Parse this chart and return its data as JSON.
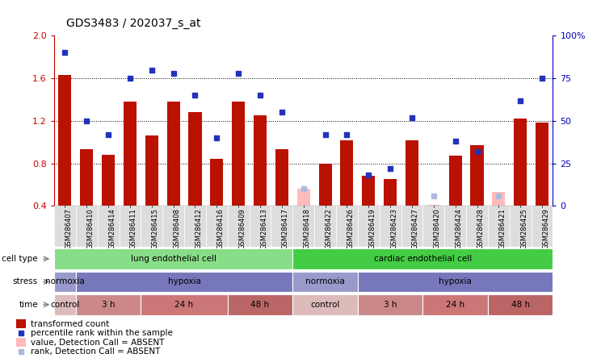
{
  "title": "GDS3483 / 202037_s_at",
  "samples": [
    "GSM286407",
    "GSM286410",
    "GSM286414",
    "GSM286411",
    "GSM286415",
    "GSM286408",
    "GSM286412",
    "GSM286416",
    "GSM286409",
    "GSM286413",
    "GSM286417",
    "GSM286418",
    "GSM286422",
    "GSM286426",
    "GSM286419",
    "GSM286423",
    "GSM286427",
    "GSM286420",
    "GSM286424",
    "GSM286428",
    "GSM286421",
    "GSM286425",
    "GSM286429"
  ],
  "bar_values": [
    1.63,
    0.93,
    0.88,
    1.38,
    1.06,
    1.38,
    1.28,
    0.84,
    1.38,
    1.25,
    0.93,
    0.56,
    0.8,
    1.02,
    0.68,
    0.65,
    1.02,
    0.41,
    0.87,
    0.97,
    0.53,
    1.22,
    1.18
  ],
  "bar_absent": [
    false,
    false,
    false,
    false,
    false,
    false,
    false,
    false,
    false,
    false,
    false,
    true,
    false,
    false,
    false,
    false,
    false,
    true,
    false,
    false,
    true,
    false,
    false
  ],
  "dot_values": [
    90,
    50,
    42,
    75,
    80,
    78,
    65,
    40,
    78,
    65,
    55,
    10,
    42,
    42,
    18,
    22,
    52,
    6,
    38,
    32,
    6,
    62,
    75
  ],
  "dot_absent": [
    false,
    false,
    false,
    false,
    false,
    false,
    false,
    false,
    false,
    false,
    false,
    true,
    false,
    false,
    false,
    false,
    false,
    true,
    false,
    false,
    true,
    false,
    false
  ],
  "ylim_left": [
    0.4,
    2.0
  ],
  "ylim_right": [
    0,
    100
  ],
  "yticks_left": [
    0.4,
    0.8,
    1.2,
    1.6,
    2.0
  ],
  "yticks_right": [
    0,
    25,
    50,
    75,
    100
  ],
  "ytick_labels_right": [
    "0",
    "25",
    "50",
    "75",
    "100%"
  ],
  "bar_color": "#BB1100",
  "bar_absent_color": "#FFBBBB",
  "dot_color": "#2233BB",
  "dot_absent_color": "#AABBDD",
  "plot_bg_color": "#FFFFFF",
  "xtick_bg_color": "#DDDDDD",
  "cell_type_groups": [
    {
      "label": "lung endothelial cell",
      "start": 0,
      "end": 10,
      "color": "#88DD88"
    },
    {
      "label": "cardiac endothelial cell",
      "start": 11,
      "end": 22,
      "color": "#44CC44"
    }
  ],
  "stress_groups": [
    {
      "label": "normoxia",
      "start": 0,
      "end": 0,
      "color": "#9999CC"
    },
    {
      "label": "hypoxia",
      "start": 1,
      "end": 10,
      "color": "#7777BB"
    },
    {
      "label": "normoxia",
      "start": 11,
      "end": 13,
      "color": "#9999CC"
    },
    {
      "label": "hypoxia",
      "start": 14,
      "end": 22,
      "color": "#7777BB"
    }
  ],
  "time_groups": [
    {
      "label": "control",
      "start": 0,
      "end": 0,
      "color": "#DDBBBB"
    },
    {
      "label": "3 h",
      "start": 1,
      "end": 3,
      "color": "#CC8888"
    },
    {
      "label": "24 h",
      "start": 4,
      "end": 7,
      "color": "#CC7777"
    },
    {
      "label": "48 h",
      "start": 8,
      "end": 10,
      "color": "#BB6666"
    },
    {
      "label": "control",
      "start": 11,
      "end": 13,
      "color": "#DDBBBB"
    },
    {
      "label": "3 h",
      "start": 14,
      "end": 16,
      "color": "#CC8888"
    },
    {
      "label": "24 h",
      "start": 17,
      "end": 19,
      "color": "#CC7777"
    },
    {
      "label": "48 h",
      "start": 20,
      "end": 22,
      "color": "#BB6666"
    }
  ],
  "row_labels": [
    "cell type",
    "stress",
    "time"
  ],
  "legend_items": [
    {
      "label": "transformed count",
      "color": "#BB1100",
      "type": "bar"
    },
    {
      "label": "percentile rank within the sample",
      "color": "#2233BB",
      "type": "dot"
    },
    {
      "label": "value, Detection Call = ABSENT",
      "color": "#FFBBBB",
      "type": "bar"
    },
    {
      "label": "rank, Detection Call = ABSENT",
      "color": "#AABBDD",
      "type": "dot"
    }
  ],
  "background_color": "#FFFFFF",
  "axis_color_left": "#CC0000",
  "axis_color_right": "#0000BB"
}
